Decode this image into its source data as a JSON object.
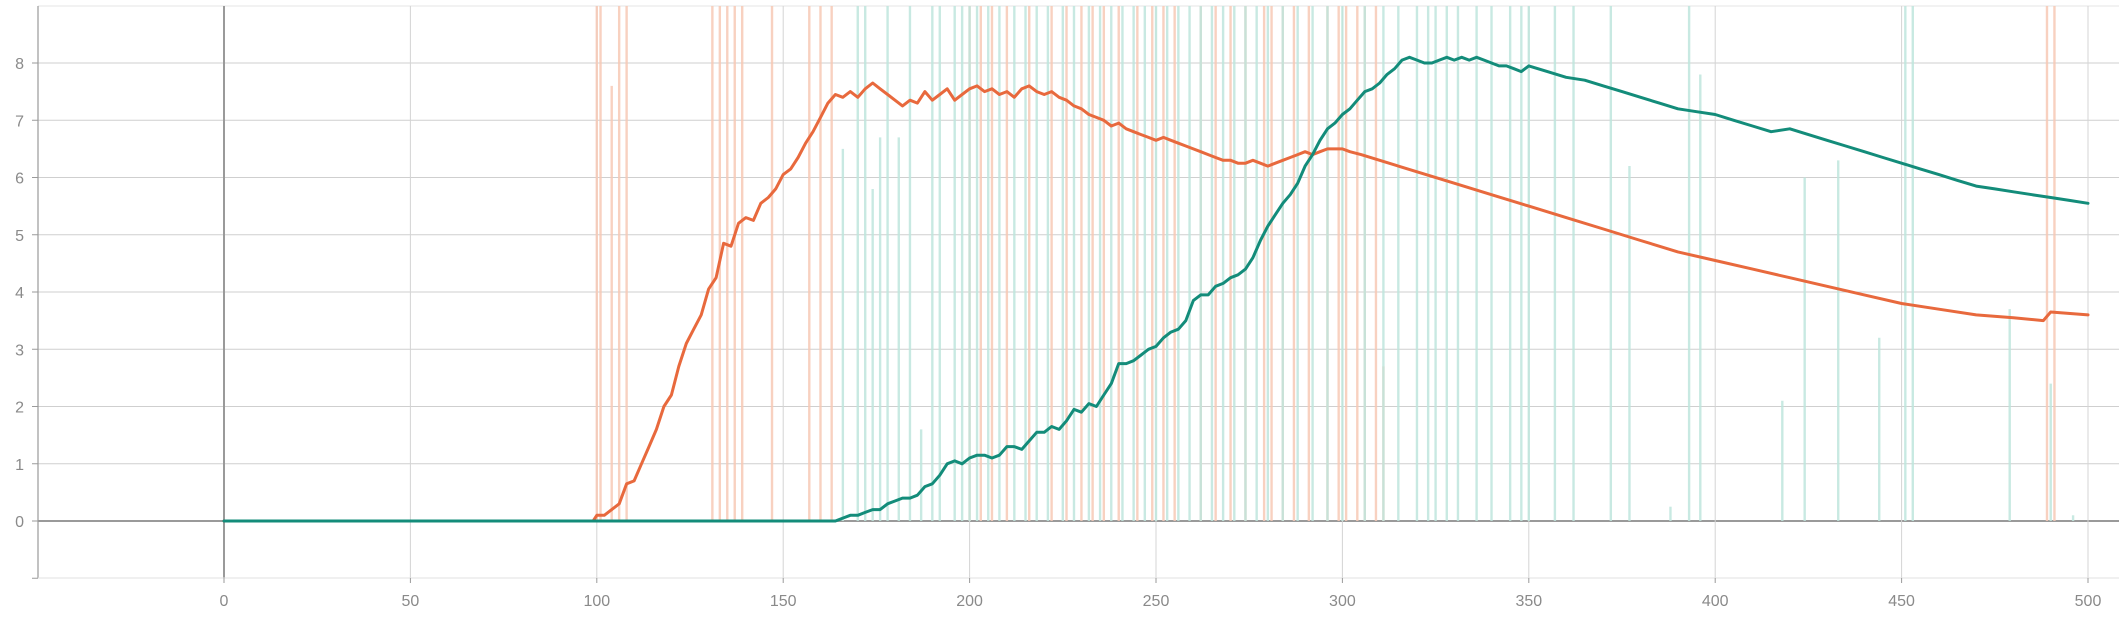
{
  "chart_data": {
    "type": "line",
    "title": "",
    "xlabel": "",
    "ylabel": "",
    "xlim": [
      -50,
      508
    ],
    "ylim": [
      -1,
      9
    ],
    "x_ticks": [
      0,
      50,
      100,
      150,
      200,
      250,
      300,
      350,
      400,
      450,
      500
    ],
    "x_tick_labels": [
      "0",
      "50",
      "100",
      "150",
      "200",
      "250",
      "300",
      "350",
      "400",
      "450",
      "500"
    ],
    "y_ticks": [
      0,
      1,
      2,
      3,
      4,
      5,
      6,
      7,
      8
    ],
    "y_tick_labels": [
      "0",
      "1",
      "2",
      "3",
      "4",
      "5",
      "6",
      "7",
      "8"
    ],
    "grid": true,
    "legend": "none",
    "series": [
      {
        "color": "#e8693d",
        "raw_color": "#f7c9b6",
        "x": [
          0,
          99,
          100,
          102,
          104,
          106,
          108,
          110,
          112,
          114,
          116,
          118,
          120,
          122,
          124,
          126,
          128,
          130,
          132,
          134,
          136,
          138,
          140,
          142,
          144,
          146,
          148,
          150,
          152,
          154,
          156,
          158,
          160,
          162,
          164,
          166,
          168,
          170,
          172,
          174,
          176,
          178,
          180,
          182,
          184,
          186,
          188,
          190,
          192,
          194,
          196,
          198,
          200,
          202,
          204,
          206,
          208,
          210,
          212,
          214,
          216,
          218,
          220,
          222,
          224,
          226,
          228,
          230,
          232,
          234,
          236,
          238,
          240,
          242,
          244,
          246,
          248,
          250,
          252,
          254,
          256,
          258,
          260,
          262,
          264,
          266,
          268,
          270,
          272,
          274,
          276,
          278,
          280,
          282,
          284,
          286,
          288,
          290,
          292,
          294,
          296,
          298,
          300,
          302,
          305,
          310,
          320,
          330,
          340,
          350,
          360,
          370,
          380,
          390,
          400,
          410,
          420,
          430,
          440,
          450,
          460,
          470,
          480,
          488,
          490,
          500
        ],
        "y": [
          0,
          0,
          0.1,
          0.1,
          0.2,
          0.3,
          0.65,
          0.7,
          1.0,
          1.3,
          1.6,
          2.0,
          2.2,
          2.7,
          3.1,
          3.35,
          3.6,
          4.05,
          4.25,
          4.85,
          4.8,
          5.2,
          5.3,
          5.25,
          5.55,
          5.65,
          5.8,
          6.05,
          6.15,
          6.35,
          6.6,
          6.8,
          7.05,
          7.3,
          7.45,
          7.4,
          7.5,
          7.4,
          7.55,
          7.65,
          7.55,
          7.45,
          7.35,
          7.25,
          7.35,
          7.3,
          7.5,
          7.35,
          7.45,
          7.55,
          7.35,
          7.45,
          7.55,
          7.6,
          7.5,
          7.55,
          7.45,
          7.5,
          7.4,
          7.55,
          7.6,
          7.5,
          7.45,
          7.5,
          7.4,
          7.35,
          7.25,
          7.2,
          7.1,
          7.05,
          7.0,
          6.9,
          6.95,
          6.85,
          6.8,
          6.75,
          6.7,
          6.65,
          6.7,
          6.65,
          6.6,
          6.55,
          6.5,
          6.45,
          6.4,
          6.35,
          6.3,
          6.3,
          6.25,
          6.25,
          6.3,
          6.25,
          6.2,
          6.25,
          6.3,
          6.35,
          6.4,
          6.45,
          6.4,
          6.45,
          6.5,
          6.5,
          6.5,
          6.45,
          6.4,
          6.3,
          6.1,
          5.9,
          5.7,
          5.5,
          5.3,
          5.1,
          4.9,
          4.7,
          4.55,
          4.4,
          4.25,
          4.1,
          3.95,
          3.8,
          3.7,
          3.6,
          3.55,
          3.5,
          3.65,
          3.6
        ]
      },
      {
        "color": "#138c7a",
        "raw_color": "#bfe6dd",
        "x": [
          0,
          164,
          166,
          168,
          170,
          172,
          174,
          176,
          178,
          180,
          182,
          184,
          186,
          188,
          190,
          192,
          194,
          196,
          198,
          200,
          202,
          204,
          206,
          208,
          210,
          212,
          214,
          216,
          218,
          220,
          222,
          224,
          226,
          228,
          230,
          232,
          234,
          236,
          238,
          240,
          242,
          244,
          246,
          248,
          250,
          252,
          254,
          256,
          258,
          260,
          262,
          264,
          266,
          268,
          270,
          272,
          274,
          276,
          278,
          280,
          282,
          284,
          286,
          288,
          290,
          292,
          294,
          296,
          298,
          300,
          302,
          304,
          306,
          308,
          310,
          312,
          314,
          316,
          318,
          320,
          322,
          324,
          326,
          328,
          330,
          332,
          334,
          336,
          338,
          340,
          342,
          344,
          346,
          348,
          350,
          355,
          360,
          365,
          370,
          375,
          380,
          385,
          390,
          395,
          400,
          405,
          410,
          415,
          420,
          425,
          430,
          435,
          440,
          445,
          450,
          455,
          460,
          465,
          470,
          475,
          480,
          485,
          490,
          495,
          500
        ],
        "y": [
          0,
          0,
          0.05,
          0.1,
          0.1,
          0.15,
          0.2,
          0.2,
          0.3,
          0.35,
          0.4,
          0.4,
          0.45,
          0.6,
          0.65,
          0.8,
          1.0,
          1.05,
          1.0,
          1.1,
          1.15,
          1.15,
          1.1,
          1.15,
          1.3,
          1.3,
          1.25,
          1.4,
          1.55,
          1.55,
          1.65,
          1.6,
          1.75,
          1.95,
          1.9,
          2.05,
          2.0,
          2.2,
          2.4,
          2.75,
          2.75,
          2.8,
          2.9,
          3.0,
          3.05,
          3.2,
          3.3,
          3.35,
          3.5,
          3.85,
          3.95,
          3.95,
          4.1,
          4.15,
          4.25,
          4.3,
          4.4,
          4.6,
          4.9,
          5.15,
          5.35,
          5.55,
          5.7,
          5.9,
          6.2,
          6.4,
          6.65,
          6.85,
          6.95,
          7.1,
          7.2,
          7.35,
          7.5,
          7.55,
          7.65,
          7.8,
          7.9,
          8.05,
          8.1,
          8.05,
          8.0,
          8.0,
          8.05,
          8.1,
          8.05,
          8.1,
          8.05,
          8.1,
          8.05,
          8.0,
          7.95,
          7.95,
          7.9,
          7.85,
          7.95,
          7.85,
          7.75,
          7.7,
          7.6,
          7.5,
          7.4,
          7.3,
          7.2,
          7.15,
          7.1,
          7.0,
          6.9,
          6.8,
          6.85,
          6.75,
          6.65,
          6.55,
          6.45,
          6.35,
          6.25,
          6.15,
          6.05,
          5.95,
          5.85,
          5.8,
          5.75,
          5.7,
          5.65,
          5.6,
          5.55
        ]
      }
    ],
    "raw_series": [
      {
        "color": "#f7c9b6",
        "spikes": [
          [
            100,
            9
          ],
          [
            101,
            9
          ],
          [
            104,
            7.6
          ],
          [
            106,
            9
          ],
          [
            108,
            9
          ],
          [
            131,
            9
          ],
          [
            133,
            9
          ],
          [
            135,
            9
          ],
          [
            137,
            9
          ],
          [
            139,
            9
          ],
          [
            147,
            9
          ],
          [
            157,
            9
          ],
          [
            160,
            9
          ],
          [
            163,
            9
          ],
          [
            200,
            9
          ],
          [
            203,
            9
          ],
          [
            206,
            9
          ],
          [
            210,
            9
          ],
          [
            216,
            9
          ],
          [
            222,
            9
          ],
          [
            226,
            9
          ],
          [
            230,
            9
          ],
          [
            233,
            9
          ],
          [
            236,
            9
          ],
          [
            240,
            9
          ],
          [
            245,
            9
          ],
          [
            249,
            9
          ],
          [
            252,
            9
          ],
          [
            255,
            9
          ],
          [
            262,
            9
          ],
          [
            266,
            9
          ],
          [
            270,
            9
          ],
          [
            274,
            9
          ],
          [
            279,
            9
          ],
          [
            281,
            9
          ],
          [
            284,
            9
          ],
          [
            287,
            9
          ],
          [
            291,
            9
          ],
          [
            296,
            9
          ],
          [
            299,
            9
          ],
          [
            301,
            9
          ],
          [
            304,
            9
          ],
          [
            306,
            9
          ],
          [
            309,
            9
          ],
          [
            311,
            2.7
          ],
          [
            489,
            9
          ],
          [
            491,
            9
          ]
        ]
      },
      {
        "color": "#bfe6dd",
        "spikes": [
          [
            166,
            6.5
          ],
          [
            170,
            9
          ],
          [
            172,
            9
          ],
          [
            174,
            5.8
          ],
          [
            176,
            6.7
          ],
          [
            178,
            9
          ],
          [
            181,
            6.7
          ],
          [
            184,
            9
          ],
          [
            187,
            1.6
          ],
          [
            190,
            9
          ],
          [
            192,
            9
          ],
          [
            196,
            9
          ],
          [
            198,
            9
          ],
          [
            200,
            9
          ],
          [
            202,
            9
          ],
          [
            205,
            9
          ],
          [
            208,
            9
          ],
          [
            212,
            9
          ],
          [
            215,
            9
          ],
          [
            218,
            9
          ],
          [
            221,
            9
          ],
          [
            225,
            9
          ],
          [
            228,
            9
          ],
          [
            232,
            9
          ],
          [
            235,
            9
          ],
          [
            238,
            9
          ],
          [
            241,
            9
          ],
          [
            244,
            9
          ],
          [
            247,
            9
          ],
          [
            250,
            9
          ],
          [
            253,
            9
          ],
          [
            256,
            9
          ],
          [
            259,
            9
          ],
          [
            262,
            9
          ],
          [
            265,
            9
          ],
          [
            268,
            9
          ],
          [
            271,
            9
          ],
          [
            274,
            9
          ],
          [
            277,
            9
          ],
          [
            280,
            9
          ],
          [
            284,
            9
          ],
          [
            288,
            9
          ],
          [
            292,
            9
          ],
          [
            296,
            9
          ],
          [
            300,
            9
          ],
          [
            306,
            9
          ],
          [
            311,
            9
          ],
          [
            315,
            9
          ],
          [
            320,
            9
          ],
          [
            323,
            9
          ],
          [
            325,
            9
          ],
          [
            328,
            9
          ],
          [
            331,
            9
          ],
          [
            336,
            9
          ],
          [
            340,
            9
          ],
          [
            345,
            9
          ],
          [
            348,
            9
          ],
          [
            350,
            9
          ],
          [
            357,
            9
          ],
          [
            362,
            9
          ],
          [
            372,
            9
          ],
          [
            377,
            6.2
          ],
          [
            388,
            0.25
          ],
          [
            393,
            9
          ],
          [
            396,
            7.8
          ],
          [
            418,
            2.1
          ],
          [
            424,
            6.0
          ],
          [
            433,
            6.3
          ],
          [
            444,
            3.2
          ],
          [
            451,
            9
          ],
          [
            453,
            9
          ],
          [
            479,
            3.7
          ],
          [
            490,
            2.4
          ],
          [
            496,
            0.1
          ]
        ]
      }
    ]
  }
}
